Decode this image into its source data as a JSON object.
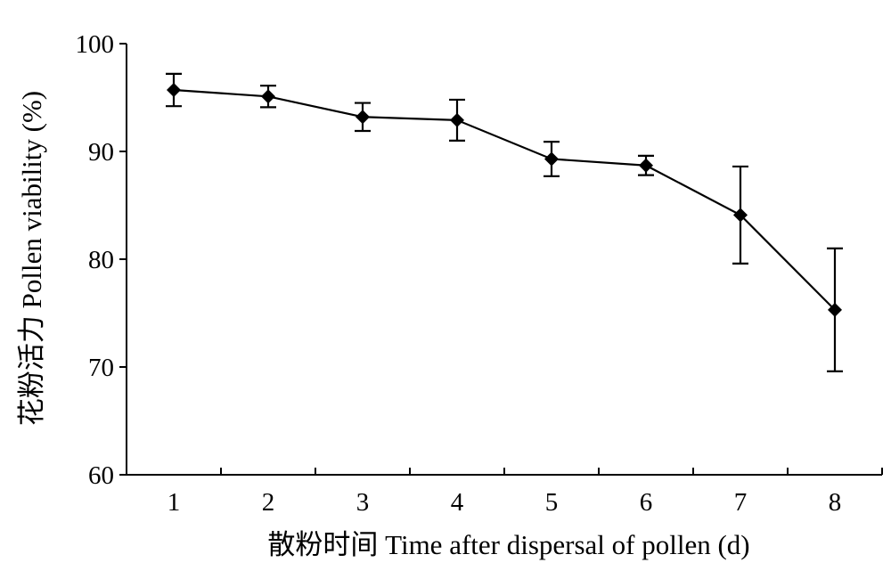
{
  "chart_data": {
    "type": "line",
    "x": [
      1,
      2,
      3,
      4,
      5,
      6,
      7,
      8
    ],
    "series": [
      {
        "values": [
          95.7,
          95.1,
          93.2,
          92.9,
          89.3,
          88.7,
          84.1,
          75.3
        ],
        "error": [
          1.5,
          1.0,
          1.3,
          1.9,
          1.6,
          0.9,
          4.5,
          5.7
        ]
      }
    ],
    "xlabel": "散粉时间 Time after dispersal of pollen (d)",
    "ylabel": "花粉活力 Pollen viability (%)",
    "xlim": [
      0.5,
      8.5
    ],
    "ylim": [
      60,
      100
    ],
    "yticks": [
      60,
      70,
      80,
      90,
      100
    ],
    "xticks": [
      1,
      2,
      3,
      4,
      5,
      6,
      7,
      8
    ],
    "grid": false,
    "marker": "diamond",
    "color": "#000000"
  }
}
